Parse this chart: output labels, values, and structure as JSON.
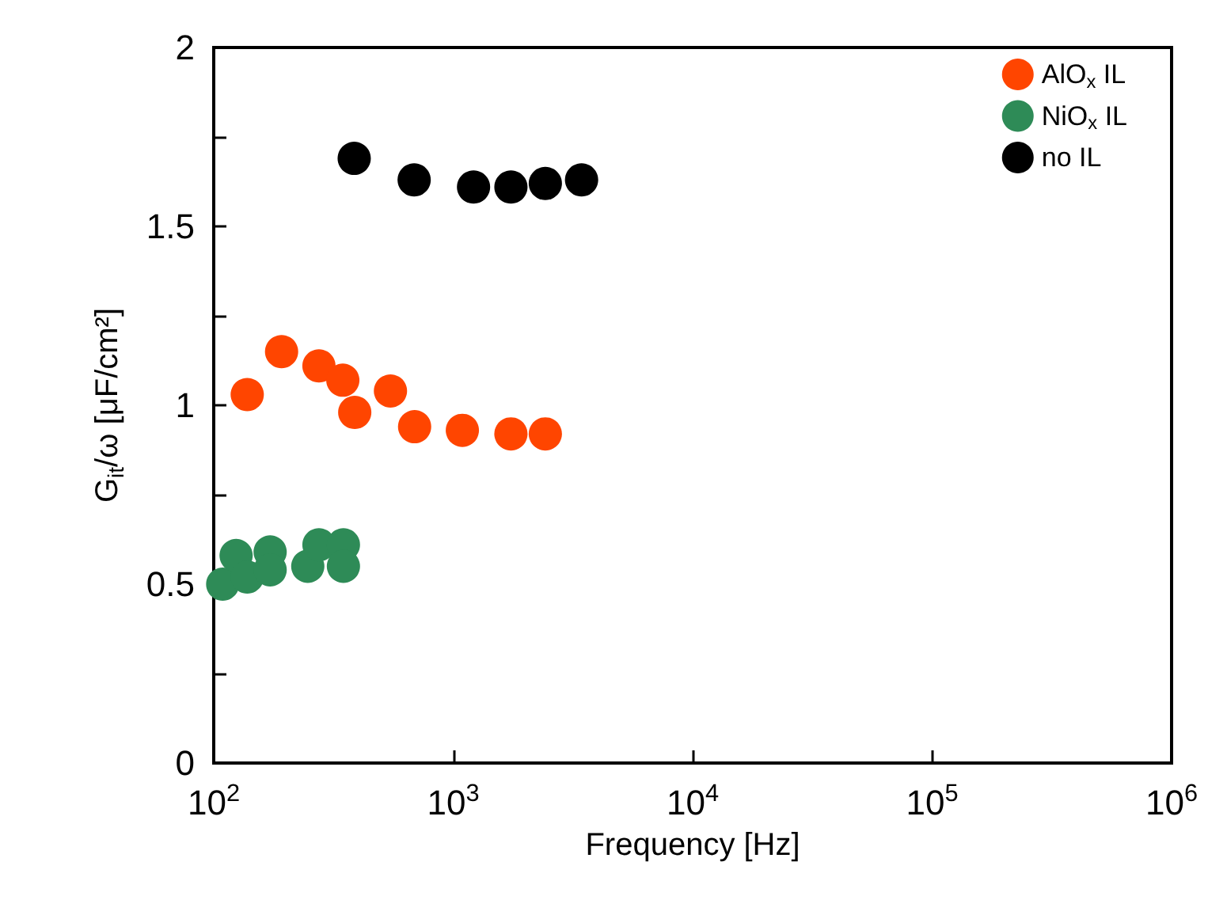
{
  "chart_data": {
    "type": "scatter",
    "xlabel": "Frequency [Hz]",
    "ylabel": "G$_{it}$/ω [μF/cm²]",
    "log": "x",
    "marker": "circle",
    "grid": false,
    "legend": "top right",
    "xlim": [
      100,
      1000000
    ],
    "xticks": [
      {
        "value": 100,
        "label": "10$^{2}$"
      },
      {
        "value": 1000,
        "label": "10$^{3}$"
      },
      {
        "value": 10000,
        "label": "10$^{4}$"
      },
      {
        "value": 100000,
        "label": "10$^{5}$"
      },
      {
        "value": 1000000,
        "label": "10$^{6}$"
      }
    ],
    "ylim": [
      0,
      2
    ],
    "yticks": [
      0,
      {
        "value": 0.25,
        "label": null
      },
      0.5,
      {
        "value": 0.75,
        "label": null
      },
      1,
      {
        "value": 1.25,
        "label": null
      },
      1.5,
      {
        "value": 1.75,
        "label": null
      },
      2
    ],
    "series": [
      {
        "name": "AlO$_{x}$ IL",
        "color": "#ff4500",
        "x": [
          138,
          192,
          275,
          346,
          388,
          547,
          690,
          1092,
          1742,
          2425
        ],
        "values": [
          1.03,
          1.15,
          1.11,
          1.07,
          0.98,
          1.04,
          0.94,
          0.93,
          0.92,
          0.92
        ]
      },
      {
        "name": "NiO$_{x}$ IL",
        "color": "#2e8b57",
        "x": [
          109,
          124,
          138,
          172,
          172,
          247,
          275,
          348,
          348
        ],
        "values": [
          0.5,
          0.58,
          0.52,
          0.59,
          0.54,
          0.55,
          0.61,
          0.61,
          0.55
        ]
      },
      {
        "name": "no IL",
        "color": "#000000",
        "x": [
          386,
          687,
          1216,
          1742,
          2425,
          3436
        ],
        "values": [
          1.69,
          1.63,
          1.61,
          1.61,
          1.62,
          1.63
        ]
      }
    ]
  }
}
